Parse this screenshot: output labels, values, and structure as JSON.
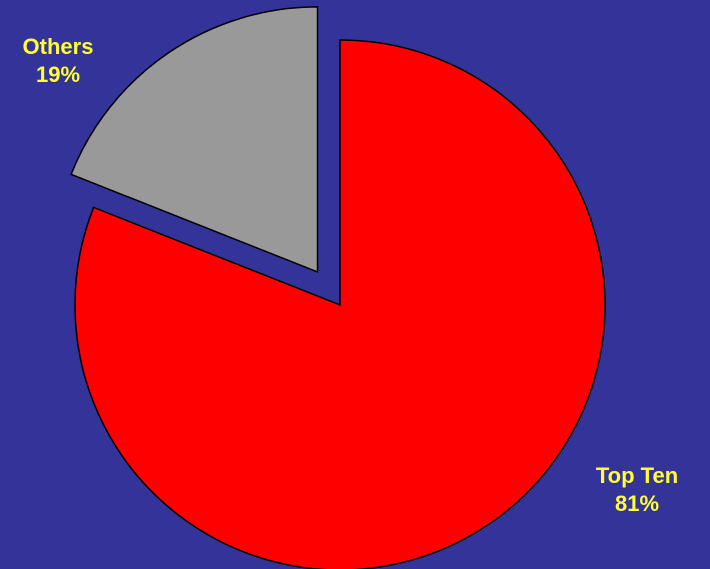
{
  "chart_data": {
    "type": "pie",
    "title": "",
    "slices": [
      {
        "label": "Top Ten",
        "value": 81,
        "value_text": "81%",
        "color": "#ff0000",
        "exploded": false
      },
      {
        "label": "Others",
        "value": 19,
        "value_text": "19%",
        "color": "#999999",
        "exploded": true
      }
    ],
    "start_angle": "12 o'clock",
    "direction": "clockwise",
    "background": "#333399",
    "label_color": "#ffff33",
    "stroke_color": "#000000",
    "legend": "none"
  }
}
